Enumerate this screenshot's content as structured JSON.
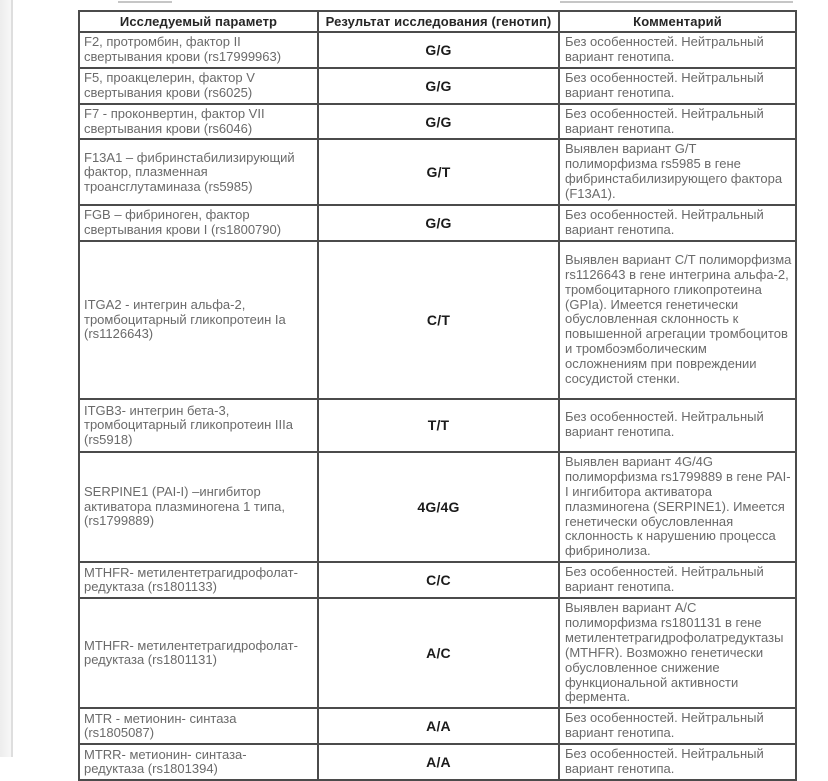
{
  "document": {
    "type": "genetic-test-report-table",
    "colors": {
      "table_border": "#4b4b4b",
      "body_text": "#6a6a6a",
      "strong_text": "#1b1b1b",
      "page_background": "#ffffff"
    },
    "table": {
      "headers": {
        "parameter": "Исследуемый параметр",
        "result": "Результат исследования (генотип)",
        "comment": "Комментарий"
      },
      "rows": [
        {
          "param": "F2, протромбин, фактор II свертывания крови (rs17999963)",
          "result": "G/G",
          "comment": "Без особенностей. Нейтральный вариант генотипа."
        },
        {
          "param": "F5, проакцелерин, фактор V свертывания крови (rs6025)",
          "result": "G/G",
          "comment": "Без особенностей. Нейтральный вариант генотипа."
        },
        {
          "param": "F7 - проконвертин, фактор VII свертывания крови (rs6046)",
          "result": "G/G",
          "comment": "Без особенностей. Нейтральный вариант генотипа."
        },
        {
          "param": "F13A1 – фибринстабилизирующий фактор, плазменная троансглутаминаза (rs5985)",
          "result": "G/T",
          "comment": "Выявлен вариант G/T полиморфизма rs5985 в гене фибринстабилизирующего фактора (F13A1)."
        },
        {
          "param": "FGB – фибриноген, фактор свертывания крови I (rs1800790)",
          "result": "G/G",
          "comment": "Без особенностей. Нейтральный вариант генотипа."
        },
        {
          "param": "ITGA2 - интегрин альфа-2, тромбоцитарный гликопротеин Ia (rs1126643)",
          "result": "C/T",
          "comment": "Выявлен вариант C/T полиморфизма rs1126643 в гене интегрина альфа-2, тромбоцитарного гликопротеина (GPIa). Имеется генетически обусловленная склонность к повышенной агрегации тромбоцитов и тромбоэмболическим осложнениям при повреждении сосудистой стенки."
        },
        {
          "param": "ITGB3- интегрин бета-3, тромбоцитарный гликопротеин IIIa (rs5918)",
          "result": "T/T",
          "comment": "Без особенностей. Нейтральный вариант генотипа."
        },
        {
          "param": "SERPINE1 (PAI-I) –ингибитор активатора плазминогена 1 типа, (rs1799889)",
          "result": "4G/4G",
          "comment": "Выявлен вариант 4G/4G полиморфизма rs1799889 в гене PAI-I ингибитора активатора плазминогена (SERPINE1). Имеется генетически обусловленная склонность к нарушению процесса фибринолиза."
        },
        {
          "param": "MTHFR- метилентетрагидрофолат-редуктаза (rs1801133)",
          "result": "C/C",
          "comment": "Без особенностей. Нейтральный вариант генотипа."
        },
        {
          "param": "MTHFR- метилентетрагидрофолат-редуктаза (rs1801131)",
          "result": "A/C",
          "comment": "Выявлен вариант A/C полиморфизма rs1801131 в гене метилентетрагидрофолатредуктазы (MTHFR). Возможно генетически обусловленное снижение функциональной активности фермента."
        },
        {
          "param": "MTR - метионин- синтаза (rs1805087)",
          "result": "A/A",
          "comment": "Без особенностей. Нейтральный вариант генотипа."
        },
        {
          "param": "MTRR- метионин- синтаза-редуктаза (rs1801394)",
          "result": "A/A",
          "comment": "Без особенностей. Нейтральный вариант генотипа."
        }
      ]
    }
  }
}
